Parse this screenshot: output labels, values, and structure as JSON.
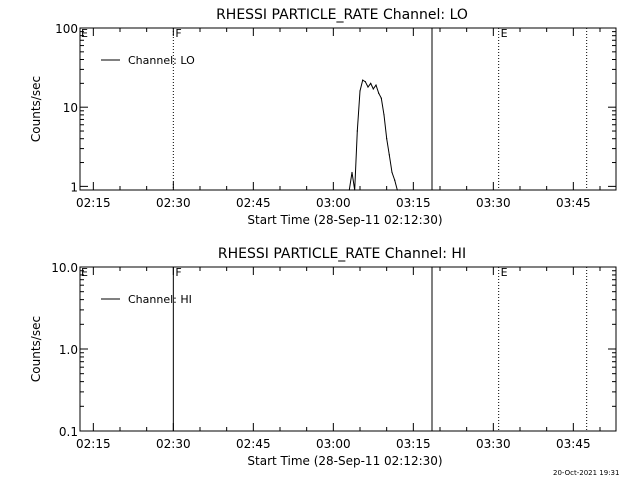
{
  "chart_data": [
    {
      "type": "line",
      "title": "RHESSI PARTICLE_RATE Channel: LO",
      "xlabel": "Start Time (28-Sep-11 02:12:30)",
      "ylabel": "Counts/sec",
      "yscale": "log",
      "ylim": [
        0.9,
        100
      ],
      "xlim": [
        "02:12:30",
        "03:53:00"
      ],
      "x_ticks": [
        "02:15",
        "02:30",
        "02:45",
        "03:00",
        "03:15",
        "03:30",
        "03:45"
      ],
      "y_ticks": [
        "1",
        "10",
        "100"
      ],
      "legend": {
        "placement": "top-left",
        "entries": [
          "Channel: LO"
        ]
      },
      "markers": [
        {
          "label": "F",
          "time": "02:30:00",
          "style": "dotted"
        },
        {
          "label": "",
          "time": "03:18:30",
          "style": "solid"
        },
        {
          "label": "E",
          "time": "03:31:00",
          "style": "dotted"
        },
        {
          "label": "",
          "time": "03:47:30",
          "style": "dotted"
        }
      ],
      "corner_label": "E",
      "series": [
        {
          "name": "Channel: LO",
          "x": [
            "03:03:00",
            "03:03:30",
            "03:04:00",
            "03:04:30",
            "03:05:00",
            "03:05:30",
            "03:06:00",
            "03:06:30",
            "03:07:00",
            "03:07:30",
            "03:08:00",
            "03:08:30",
            "03:09:00",
            "03:09:30",
            "03:10:00",
            "03:10:30",
            "03:11:00",
            "03:11:30",
            "03:12:00",
            "03:12:30"
          ],
          "values": [
            0.9,
            1.5,
            0.9,
            5.0,
            16,
            22,
            21,
            18,
            20,
            17,
            19,
            15,
            13,
            8,
            4,
            2.5,
            1.5,
            1.2,
            0.9,
            0.9
          ]
        }
      ]
    },
    {
      "type": "line",
      "title": "RHESSI PARTICLE_RATE Channel: HI",
      "xlabel": "Start Time (28-Sep-11 02:12:30)",
      "ylabel": "Counts/sec",
      "yscale": "log",
      "ylim": [
        0.1,
        10
      ],
      "xlim": [
        "02:12:30",
        "03:53:00"
      ],
      "x_ticks": [
        "02:15",
        "02:30",
        "02:45",
        "03:00",
        "03:15",
        "03:30",
        "03:45"
      ],
      "y_ticks": [
        "0.1",
        "1.0",
        "10.0"
      ],
      "legend": {
        "placement": "top-left",
        "entries": [
          "Channel: HI"
        ]
      },
      "markers": [
        {
          "label": "F",
          "time": "02:30:00",
          "style": "solid"
        },
        {
          "label": "",
          "time": "03:18:30",
          "style": "solid"
        },
        {
          "label": "E",
          "time": "03:31:00",
          "style": "dotted"
        },
        {
          "label": "",
          "time": "03:47:30",
          "style": "dotted"
        }
      ],
      "corner_label": "E",
      "series": [
        {
          "name": "Channel: HI",
          "x": [],
          "values": []
        }
      ]
    }
  ],
  "footer": {
    "timestamp": "20-Oct-2021 19:31"
  }
}
